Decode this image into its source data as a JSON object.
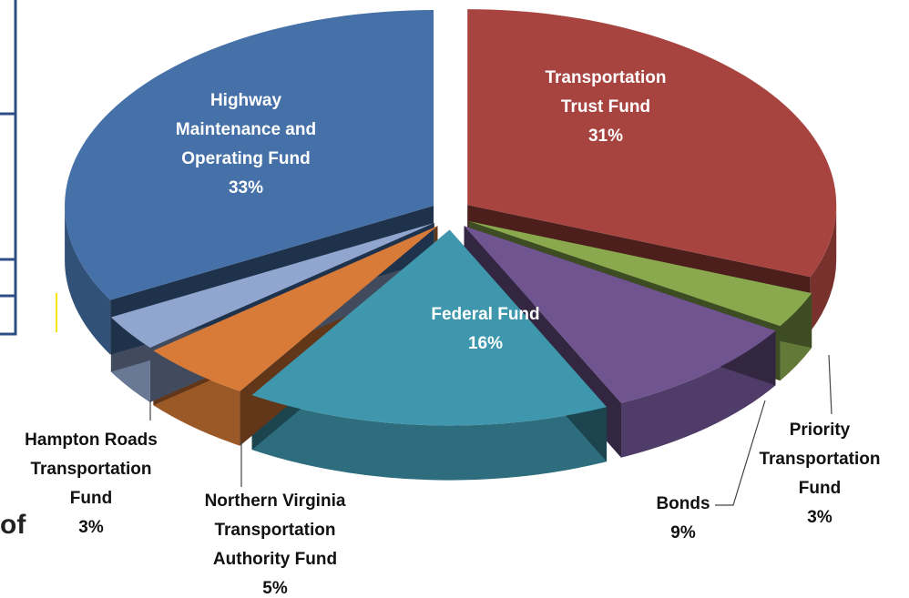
{
  "background_fragment": "of",
  "chart_data": {
    "type": "pie",
    "categories": [
      "Transportation Trust Fund",
      "Priority Transportation Fund",
      "Bonds",
      "Federal Fund",
      "Northern Virginia Transportation Authority Fund",
      "Hampton Roads Transportation Fund",
      "Highway Maintenance and Operating Fund"
    ],
    "values": [
      31,
      3,
      9,
      16,
      5,
      3,
      33
    ],
    "value_labels": [
      "31%",
      "3%",
      "9%",
      "16%",
      "5%",
      "3%",
      "33%"
    ],
    "colors": [
      "#a84440",
      "#8aa84e",
      "#6f5490",
      "#3f97ad",
      "#d97b38",
      "#91a6cf",
      "#4570a8"
    ]
  }
}
